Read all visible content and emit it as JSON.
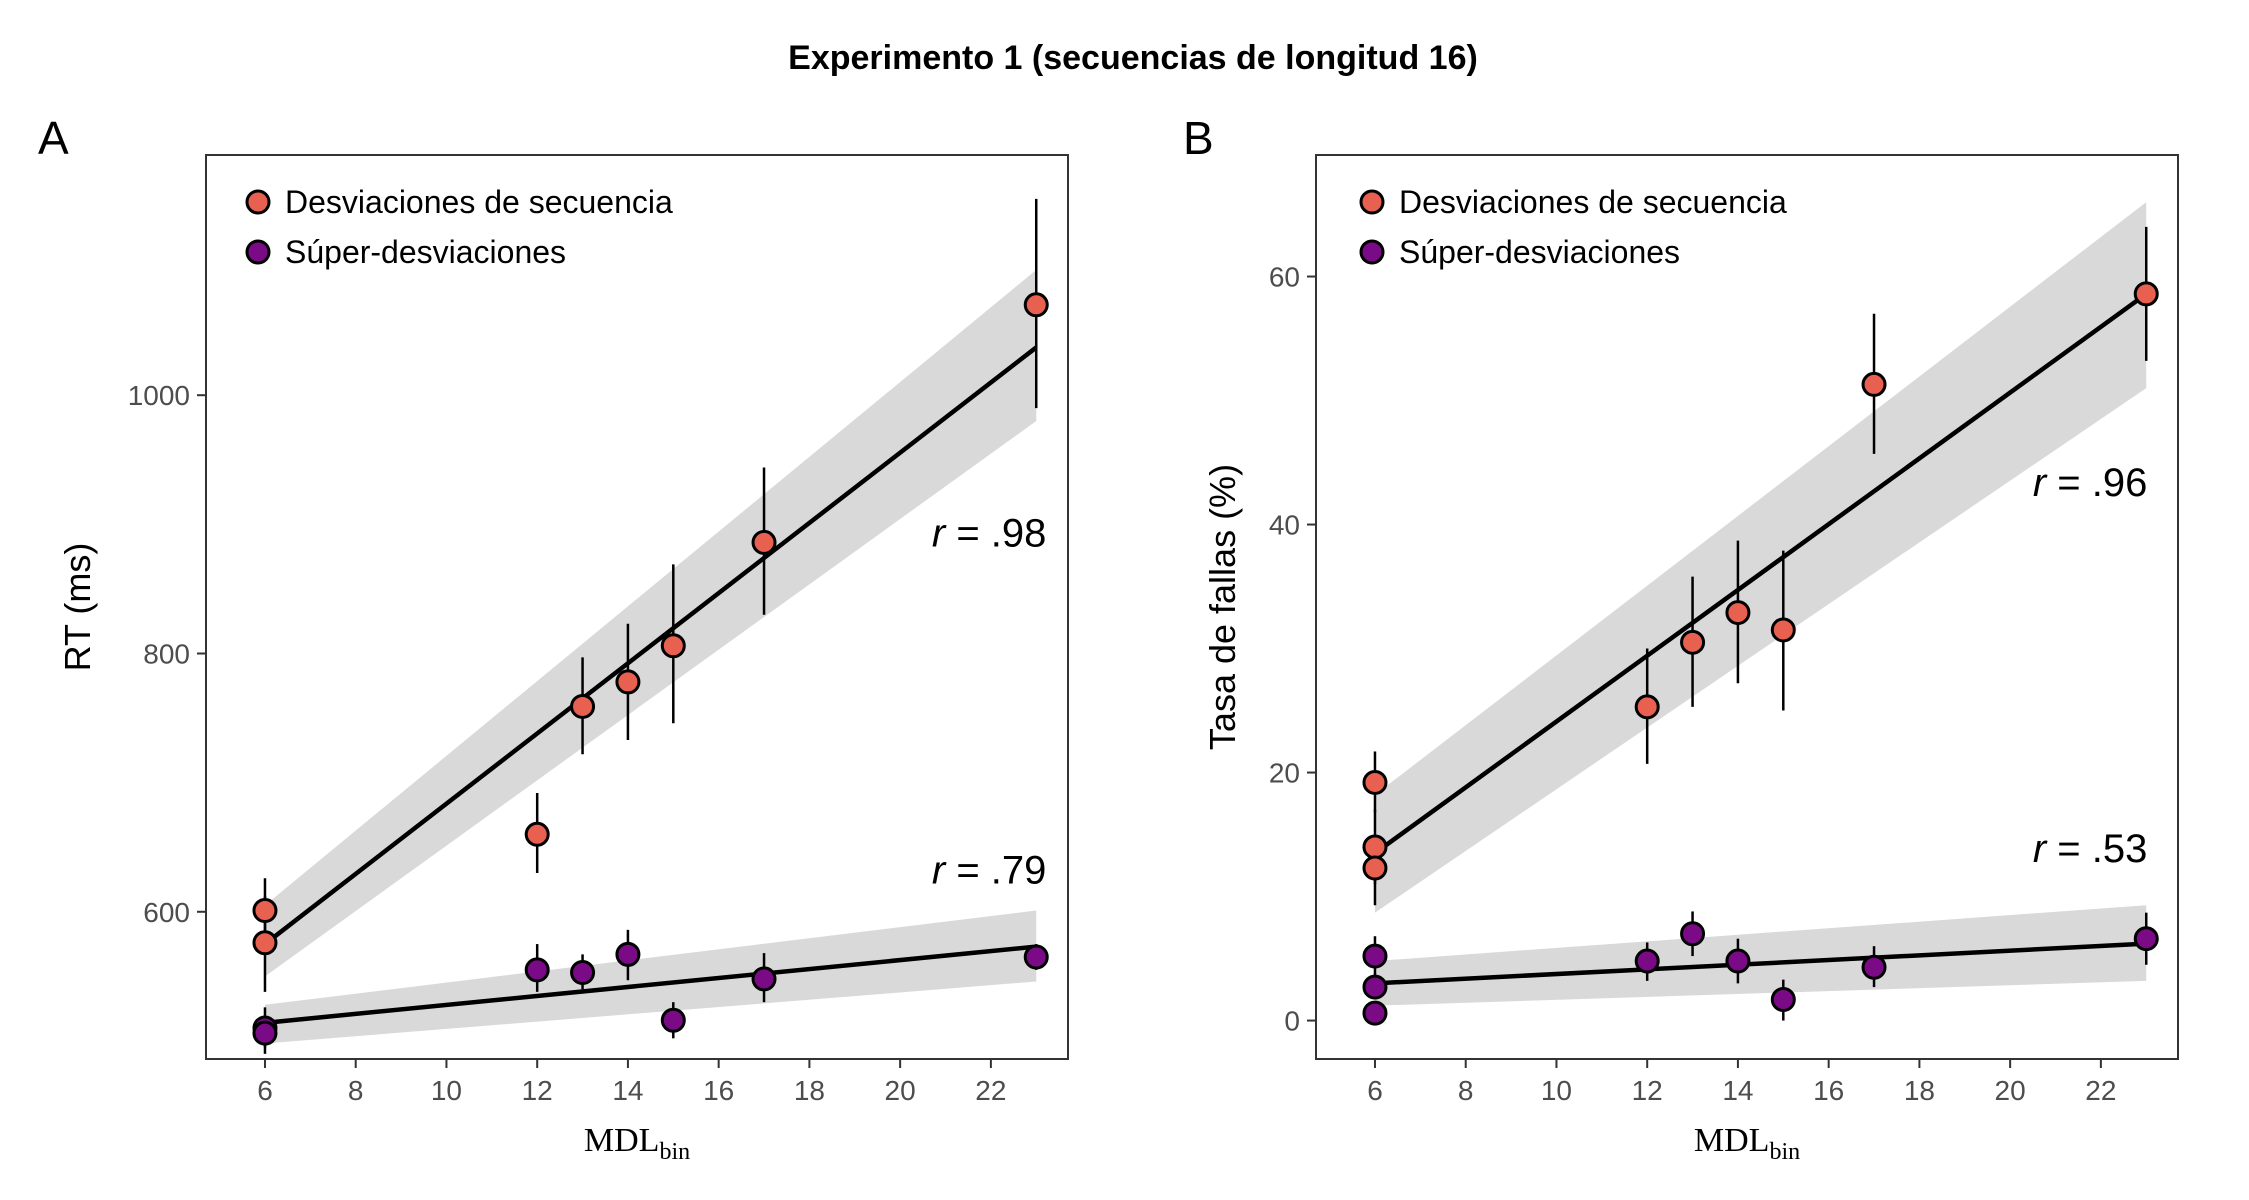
{
  "figure": {
    "title": "Experimento 1 (secuencias de longitud 16)"
  },
  "colors": {
    "seq": "#E8604F",
    "super": "#7B0A86",
    "band": "#D9D9D9",
    "line": "#000000",
    "axis": "#333333"
  },
  "chart_data": [
    {
      "type": "scatter",
      "panel_label": "A",
      "title": "",
      "xlabel_main": "MDL",
      "xlabel_sub": "bin",
      "ylabel": "RT (ms)",
      "xlim": [
        4.7,
        23.7
      ],
      "ylim": [
        486,
        1186
      ],
      "xticks": [
        6,
        8,
        10,
        12,
        14,
        16,
        18,
        20,
        22
      ],
      "yticks": [
        600,
        800,
        1000
      ],
      "legend_position": "top-left",
      "series": [
        {
          "name": "Desviaciones de secuencia",
          "color_key": "seq",
          "points": [
            {
              "x": 6,
              "y": 601,
              "lo": 576,
              "hi": 626
            },
            {
              "x": 6,
              "y": 576,
              "lo": 538,
              "hi": 612
            },
            {
              "x": 12,
              "y": 660,
              "lo": 630,
              "hi": 692
            },
            {
              "x": 13,
              "y": 759,
              "lo": 722,
              "hi": 797
            },
            {
              "x": 14,
              "y": 778,
              "lo": 733,
              "hi": 823
            },
            {
              "x": 15,
              "y": 806,
              "lo": 746,
              "hi": 869
            },
            {
              "x": 17,
              "y": 886,
              "lo": 830,
              "hi": 944
            },
            {
              "x": 23,
              "y": 1070,
              "lo": 990,
              "hi": 1152
            }
          ],
          "fit": {
            "x": [
              6,
              23
            ],
            "y": [
              575,
              1037
            ],
            "band_lo": [
              550,
              980
            ],
            "band_hi": [
              605,
              1097
            ]
          },
          "r_label": ".98",
          "r_pos": {
            "x": 20.7,
            "y": 883
          }
        },
        {
          "name": "Súper-desviaciones",
          "color_key": "super",
          "points": [
            {
              "x": 6,
              "y": 510,
              "lo": 495,
              "hi": 526
            },
            {
              "x": 6,
              "y": 506,
              "lo": 490,
              "hi": 520
            },
            {
              "x": 12,
              "y": 555,
              "lo": 538,
              "hi": 575
            },
            {
              "x": 13,
              "y": 553,
              "lo": 540,
              "hi": 567
            },
            {
              "x": 14,
              "y": 567,
              "lo": 547,
              "hi": 586
            },
            {
              "x": 15,
              "y": 516,
              "lo": 502,
              "hi": 530
            },
            {
              "x": 17,
              "y": 548,
              "lo": 530,
              "hi": 568
            },
            {
              "x": 23,
              "y": 565,
              "lo": 555,
              "hi": 575
            }
          ],
          "fit": {
            "x": [
              6,
              23
            ],
            "y": [
              514,
              573
            ],
            "band_lo": [
              498,
              546
            ],
            "band_hi": [
              528,
              601
            ]
          },
          "r_label": ".79",
          "r_pos": {
            "x": 20.7,
            "y": 622
          }
        }
      ]
    },
    {
      "type": "scatter",
      "panel_label": "B",
      "title": "",
      "xlabel_main": "MDL",
      "xlabel_sub": "bin",
      "ylabel": "Tasa de fallas (%)",
      "xlim": [
        4.7,
        23.7
      ],
      "ylim": [
        -3.1,
        69.8
      ],
      "xticks": [
        6,
        8,
        10,
        12,
        14,
        16,
        18,
        20,
        22
      ],
      "yticks": [
        0,
        20,
        40,
        60
      ],
      "legend_position": "top-left",
      "series": [
        {
          "name": "Desviaciones de secuencia",
          "color_key": "seq",
          "points": [
            {
              "x": 6,
              "y": 19.2,
              "lo": 16.8,
              "hi": 21.7
            },
            {
              "x": 6,
              "y": 14.0,
              "lo": 11.0,
              "hi": 17.0
            },
            {
              "x": 6,
              "y": 12.3,
              "lo": 9.3,
              "hi": 15.0
            },
            {
              "x": 12,
              "y": 25.3,
              "lo": 20.7,
              "hi": 30.0
            },
            {
              "x": 13,
              "y": 30.5,
              "lo": 25.3,
              "hi": 35.8
            },
            {
              "x": 14,
              "y": 32.9,
              "lo": 27.2,
              "hi": 38.7
            },
            {
              "x": 15,
              "y": 31.5,
              "lo": 25.0,
              "hi": 37.9
            },
            {
              "x": 17,
              "y": 51.3,
              "lo": 45.7,
              "hi": 57.0
            },
            {
              "x": 23,
              "y": 58.6,
              "lo": 53.2,
              "hi": 64.0
            }
          ],
          "fit": {
            "x": [
              6,
              23
            ],
            "y": [
              13.5,
              58.6
            ],
            "band_lo": [
              8.7,
              51.0
            ],
            "band_hi": [
              18.2,
              66.0
            ]
          },
          "r_label": ".96",
          "r_pos": {
            "x": 20.5,
            "y": 42.3
          }
        },
        {
          "name": "Súper-desviaciones",
          "color_key": "super",
          "points": [
            {
              "x": 6,
              "y": 5.2,
              "lo": 3.7,
              "hi": 6.8
            },
            {
              "x": 6,
              "y": 2.7,
              "lo": 1.7,
              "hi": 3.8
            },
            {
              "x": 6,
              "y": 0.6,
              "lo": 0.0,
              "hi": 1.4
            },
            {
              "x": 12,
              "y": 4.8,
              "lo": 3.2,
              "hi": 6.3
            },
            {
              "x": 13,
              "y": 7.0,
              "lo": 5.2,
              "hi": 8.8
            },
            {
              "x": 14,
              "y": 4.8,
              "lo": 3.0,
              "hi": 6.6
            },
            {
              "x": 15,
              "y": 1.7,
              "lo": 0.0,
              "hi": 3.3
            },
            {
              "x": 17,
              "y": 4.3,
              "lo": 2.7,
              "hi": 6.0
            },
            {
              "x": 23,
              "y": 6.6,
              "lo": 4.5,
              "hi": 8.7
            }
          ],
          "fit": {
            "x": [
              6,
              23
            ],
            "y": [
              3.0,
              6.2
            ],
            "band_lo": [
              1.2,
              3.2
            ],
            "band_hi": [
              4.8,
              9.3
            ]
          },
          "r_label": ".53",
          "r_pos": {
            "x": 20.5,
            "y": 12.8
          }
        }
      ]
    }
  ]
}
